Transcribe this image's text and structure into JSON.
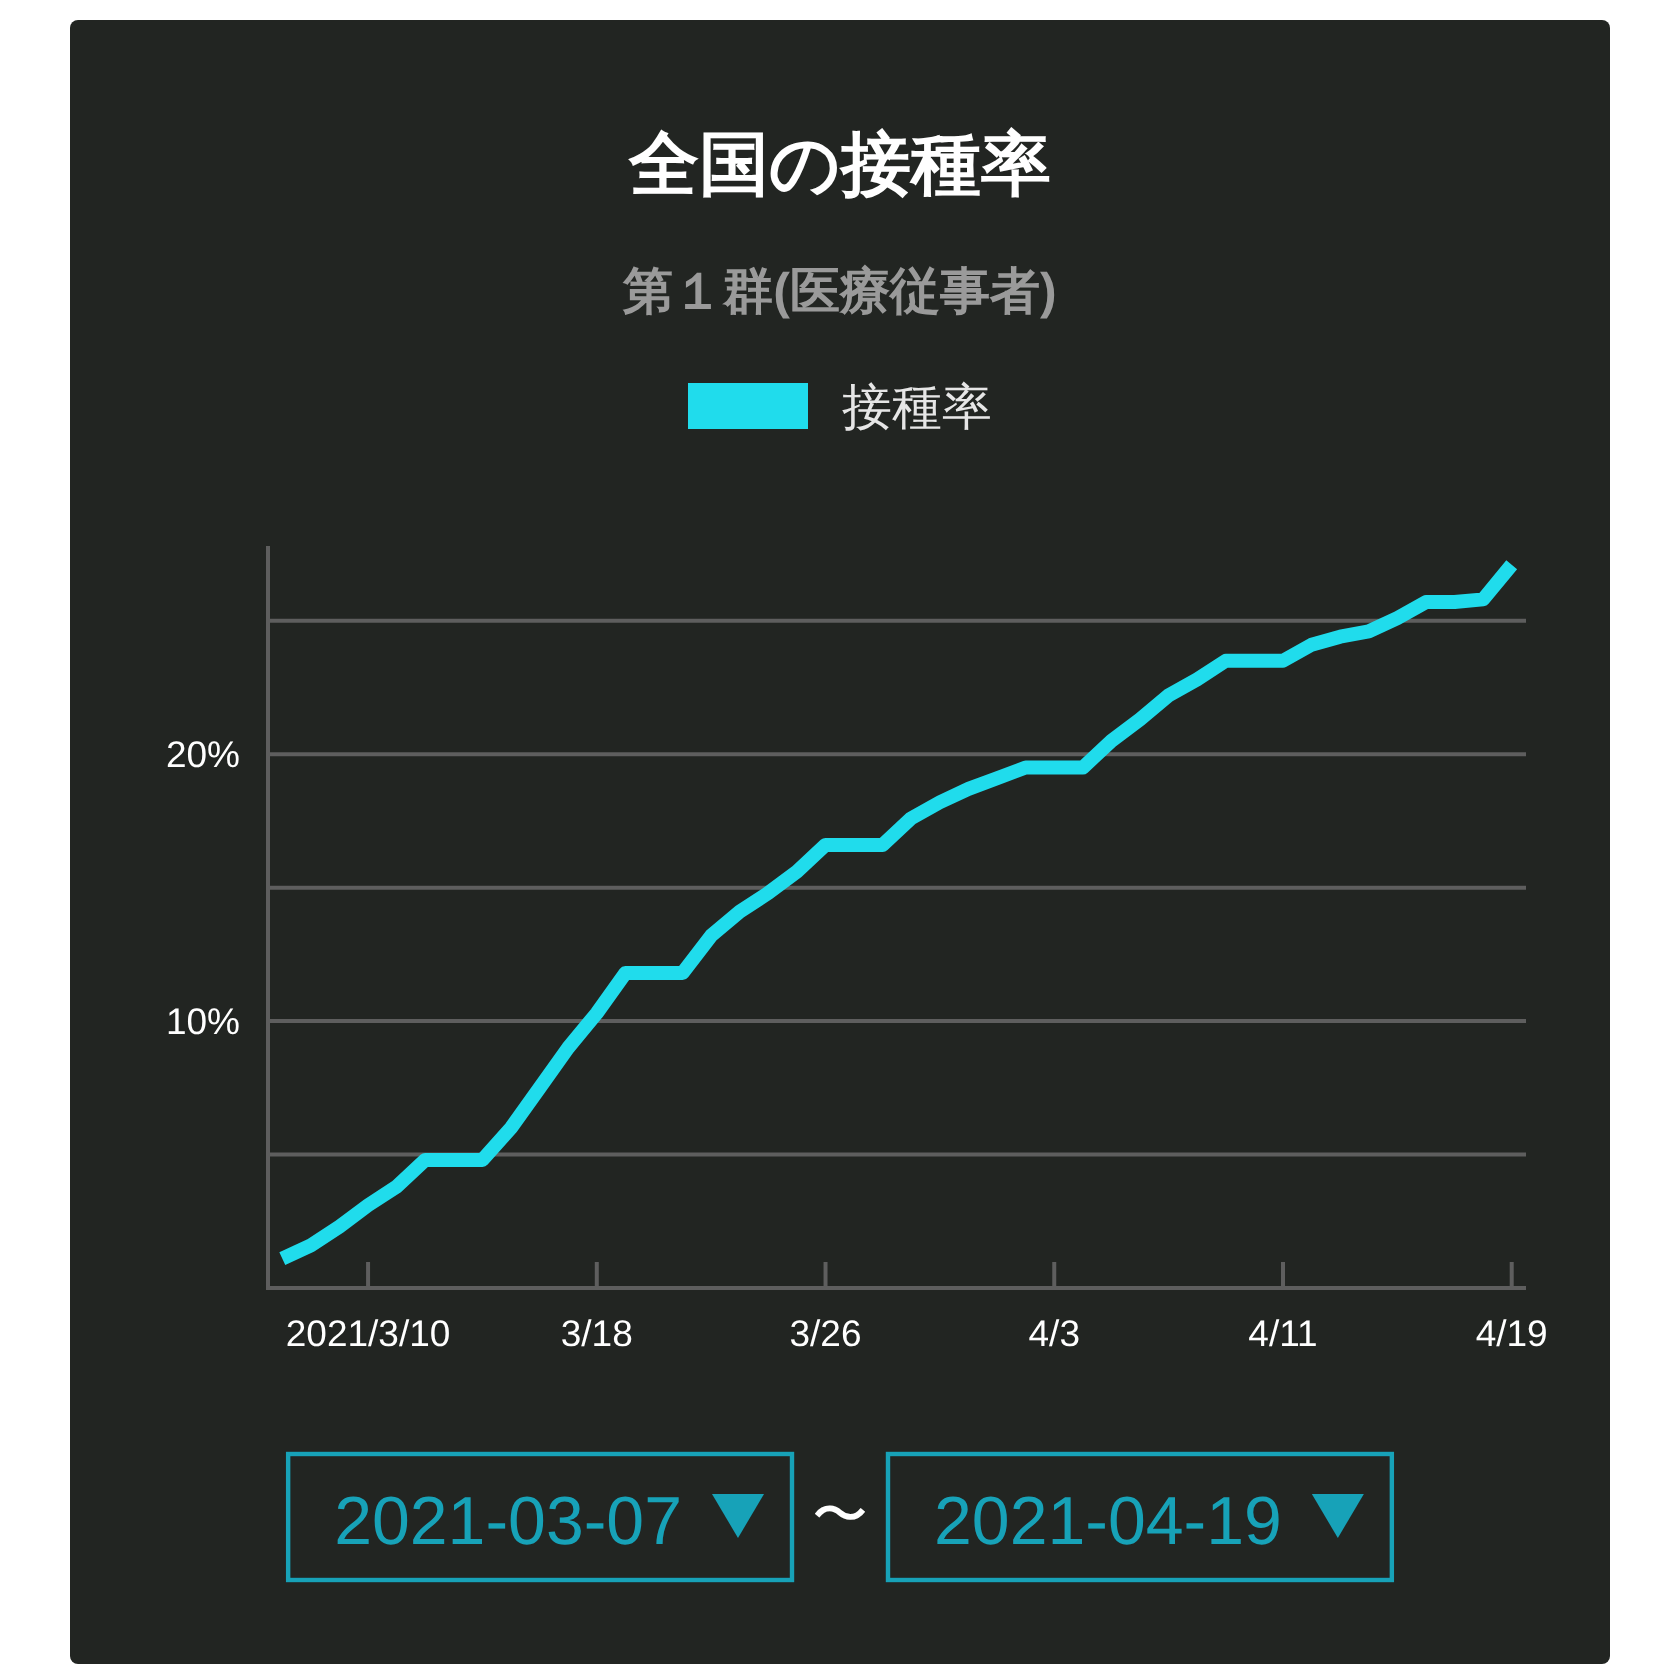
{
  "chart_data": {
    "type": "line",
    "title": "全国の接種率",
    "subtitle": "第１群(医療従事者)",
    "x": [
      "2021-03-07",
      "2021-03-08",
      "2021-03-09",
      "2021-03-10",
      "2021-03-11",
      "2021-03-12",
      "2021-03-13",
      "2021-03-14",
      "2021-03-15",
      "2021-03-16",
      "2021-03-17",
      "2021-03-18",
      "2021-03-19",
      "2021-03-20",
      "2021-03-21",
      "2021-03-22",
      "2021-03-23",
      "2021-03-24",
      "2021-03-25",
      "2021-03-26",
      "2021-03-27",
      "2021-03-28",
      "2021-03-29",
      "2021-03-30",
      "2021-03-31",
      "2021-04-01",
      "2021-04-02",
      "2021-04-03",
      "2021-04-04",
      "2021-04-05",
      "2021-04-06",
      "2021-04-07",
      "2021-04-08",
      "2021-04-09",
      "2021-04-10",
      "2021-04-11",
      "2021-04-12",
      "2021-04-13",
      "2021-04-14",
      "2021-04-15",
      "2021-04-16",
      "2021-04-17",
      "2021-04-18",
      "2021-04-19"
    ],
    "series": [
      {
        "name": "接種率",
        "color": "#20dcec",
        "values": [
          1.1,
          1.6,
          2.3,
          3.1,
          3.8,
          4.8,
          4.8,
          4.8,
          6.0,
          7.5,
          9.0,
          10.3,
          11.8,
          11.8,
          11.8,
          13.2,
          14.1,
          14.8,
          15.6,
          16.6,
          16.6,
          16.6,
          17.6,
          18.2,
          18.7,
          19.1,
          19.5,
          19.5,
          19.5,
          20.5,
          21.3,
          22.2,
          22.8,
          23.5,
          23.5,
          23.5,
          24.1,
          24.4,
          24.6,
          25.1,
          25.7,
          25.7,
          25.8,
          27.1
        ]
      }
    ],
    "xlim": [
      "2021-03-06T12:00",
      "2021-04-19T12:00"
    ],
    "xticks": [
      {
        "value": "2021-03-10",
        "label": "2021/3/10"
      },
      {
        "value": "2021-03-18",
        "label": "3/18"
      },
      {
        "value": "2021-03-26",
        "label": "3/26"
      },
      {
        "value": "2021-04-03",
        "label": "4/3"
      },
      {
        "value": "2021-04-11",
        "label": "4/11"
      },
      {
        "value": "2021-04-19",
        "label": "4/19"
      }
    ],
    "ylim": [
      0,
      27.8
    ],
    "yticks": [
      {
        "value": 5,
        "label": null
      },
      {
        "value": 10,
        "label": "10%"
      },
      {
        "value": 15,
        "label": null
      },
      {
        "value": 20,
        "label": "20%"
      },
      {
        "value": 25,
        "label": null
      }
    ],
    "grid": "y",
    "legend": "top",
    "annotations": [
      "2021-03-07",
      "〜",
      "2021-04-19"
    ]
  }
}
